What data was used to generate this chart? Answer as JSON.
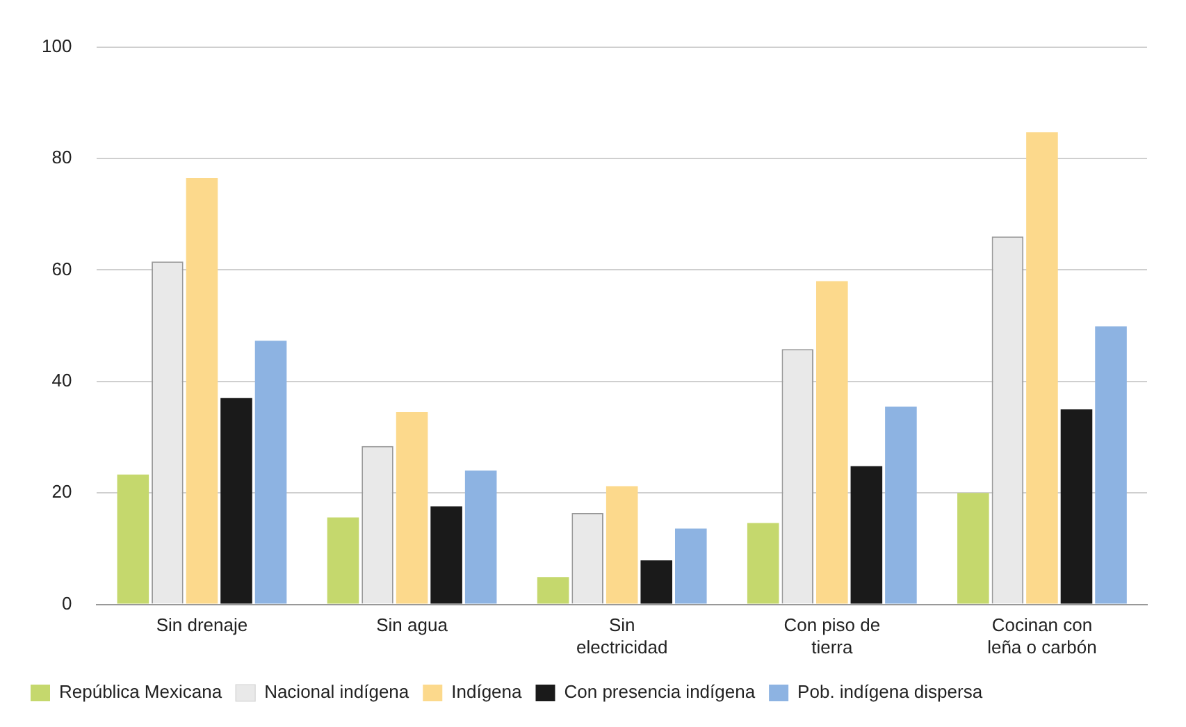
{
  "chart_data": {
    "type": "bar",
    "categories": [
      "Sin drenaje",
      "Sin agua",
      "Sin electricidad",
      "Con piso de tierra",
      "Cocinan con leña o carbón"
    ],
    "series": [
      {
        "name": "República Mexicana",
        "color": "#c5d86d",
        "values": [
          23.3,
          15.6,
          4.9,
          14.6,
          20
        ]
      },
      {
        "name": "Nacional indígena",
        "color": "#e9e9e9",
        "values": [
          61.5,
          28.4,
          16.4,
          45.8,
          66
        ]
      },
      {
        "name": "Indígena",
        "color": "#fcd98c",
        "values": [
          76.5,
          34.5,
          21.2,
          58,
          84.7
        ]
      },
      {
        "name": "Con presencia indígena",
        "color": "#1a1a1a",
        "values": [
          37,
          17.6,
          7.9,
          24.8,
          35
        ]
      },
      {
        "name": "Pob. indígena dispersa",
        "color": "#8db3e2",
        "values": [
          47.3,
          24,
          13.6,
          35.5,
          49.9
        ]
      }
    ],
    "ylim": [
      0,
      100
    ],
    "yticks": [
      0,
      20,
      40,
      60,
      80,
      100
    ],
    "grid": "y",
    "legend": "bottom left"
  }
}
